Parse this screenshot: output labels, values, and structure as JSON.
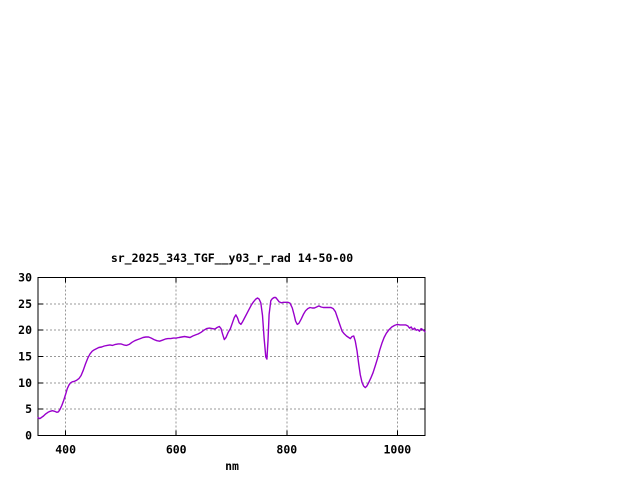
{
  "chart_data": {
    "type": "line",
    "title": "sr_2025_343_TGF__y03_r_rad 14-50-00",
    "xlabel": "nm",
    "ylabel": "",
    "xlim": [
      350,
      1050
    ],
    "ylim": [
      0,
      30
    ],
    "x_ticks": [
      400,
      600,
      800,
      1000
    ],
    "y_ticks": [
      0,
      5,
      10,
      15,
      20,
      25,
      30
    ],
    "grid": true,
    "legend": "none",
    "colors": {
      "axis": "#000000",
      "grid": "#989898",
      "background": "#ffffff"
    },
    "series": [
      {
        "name": "radiance",
        "color": "#9900cc",
        "points": [
          [
            350,
            3.4
          ],
          [
            353,
            3.2
          ],
          [
            356,
            3.4
          ],
          [
            360,
            3.7
          ],
          [
            364,
            4.1
          ],
          [
            368,
            4.4
          ],
          [
            372,
            4.6
          ],
          [
            376,
            4.7
          ],
          [
            380,
            4.6
          ],
          [
            384,
            4.4
          ],
          [
            387,
            4.5
          ],
          [
            390,
            5.0
          ],
          [
            393,
            5.7
          ],
          [
            396,
            6.5
          ],
          [
            400,
            7.8
          ],
          [
            403,
            8.9
          ],
          [
            406,
            9.6
          ],
          [
            409,
            10.0
          ],
          [
            412,
            10.2
          ],
          [
            416,
            10.3
          ],
          [
            420,
            10.5
          ],
          [
            424,
            10.8
          ],
          [
            428,
            11.4
          ],
          [
            432,
            12.4
          ],
          [
            436,
            13.6
          ],
          [
            440,
            14.7
          ],
          [
            444,
            15.5
          ],
          [
            448,
            16.0
          ],
          [
            452,
            16.3
          ],
          [
            456,
            16.5
          ],
          [
            460,
            16.7
          ],
          [
            465,
            16.8
          ],
          [
            470,
            17.0
          ],
          [
            475,
            17.1
          ],
          [
            480,
            17.2
          ],
          [
            485,
            17.1
          ],
          [
            490,
            17.3
          ],
          [
            495,
            17.4
          ],
          [
            500,
            17.4
          ],
          [
            505,
            17.2
          ],
          [
            510,
            17.1
          ],
          [
            515,
            17.3
          ],
          [
            520,
            17.7
          ],
          [
            525,
            18.0
          ],
          [
            530,
            18.2
          ],
          [
            535,
            18.4
          ],
          [
            540,
            18.6
          ],
          [
            545,
            18.7
          ],
          [
            550,
            18.7
          ],
          [
            555,
            18.5
          ],
          [
            560,
            18.2
          ],
          [
            565,
            18.0
          ],
          [
            570,
            17.9
          ],
          [
            575,
            18.1
          ],
          [
            580,
            18.3
          ],
          [
            585,
            18.4
          ],
          [
            590,
            18.4
          ],
          [
            595,
            18.5
          ],
          [
            600,
            18.5
          ],
          [
            605,
            18.6
          ],
          [
            610,
            18.7
          ],
          [
            615,
            18.8
          ],
          [
            620,
            18.7
          ],
          [
            625,
            18.6
          ],
          [
            630,
            18.9
          ],
          [
            635,
            19.1
          ],
          [
            640,
            19.3
          ],
          [
            645,
            19.6
          ],
          [
            650,
            20.0
          ],
          [
            655,
            20.3
          ],
          [
            660,
            20.4
          ],
          [
            665,
            20.3
          ],
          [
            670,
            20.2
          ],
          [
            674,
            20.5
          ],
          [
            678,
            20.7
          ],
          [
            681,
            20.3
          ],
          [
            684,
            19.2
          ],
          [
            687,
            18.2
          ],
          [
            690,
            18.6
          ],
          [
            694,
            19.6
          ],
          [
            698,
            20.3
          ],
          [
            702,
            21.5
          ],
          [
            705,
            22.4
          ],
          [
            708,
            22.9
          ],
          [
            711,
            22.3
          ],
          [
            714,
            21.4
          ],
          [
            717,
            21.1
          ],
          [
            720,
            21.6
          ],
          [
            724,
            22.4
          ],
          [
            728,
            23.2
          ],
          [
            732,
            24.0
          ],
          [
            736,
            24.8
          ],
          [
            740,
            25.4
          ],
          [
            744,
            25.9
          ],
          [
            747,
            26.1
          ],
          [
            750,
            25.9
          ],
          [
            753,
            25.2
          ],
          [
            756,
            22.8
          ],
          [
            759,
            18.5
          ],
          [
            762,
            14.9
          ],
          [
            764,
            14.5
          ],
          [
            766,
            18.0
          ],
          [
            768,
            23.0
          ],
          [
            771,
            25.6
          ],
          [
            774,
            26.0
          ],
          [
            777,
            26.2
          ],
          [
            780,
            26.2
          ],
          [
            783,
            25.8
          ],
          [
            786,
            25.4
          ],
          [
            790,
            25.2
          ],
          [
            794,
            25.3
          ],
          [
            798,
            25.3
          ],
          [
            802,
            25.3
          ],
          [
            806,
            25.1
          ],
          [
            810,
            24.2
          ],
          [
            813,
            23.0
          ],
          [
            816,
            21.7
          ],
          [
            819,
            21.1
          ],
          [
            822,
            21.3
          ],
          [
            826,
            22.1
          ],
          [
            830,
            23.0
          ],
          [
            834,
            23.7
          ],
          [
            838,
            24.1
          ],
          [
            842,
            24.3
          ],
          [
            846,
            24.2
          ],
          [
            850,
            24.2
          ],
          [
            854,
            24.4
          ],
          [
            858,
            24.6
          ],
          [
            862,
            24.4
          ],
          [
            866,
            24.3
          ],
          [
            870,
            24.3
          ],
          [
            875,
            24.3
          ],
          [
            880,
            24.3
          ],
          [
            884,
            24.1
          ],
          [
            888,
            23.5
          ],
          [
            892,
            22.3
          ],
          [
            896,
            21.0
          ],
          [
            900,
            19.8
          ],
          [
            904,
            19.3
          ],
          [
            908,
            18.9
          ],
          [
            912,
            18.6
          ],
          [
            915,
            18.4
          ],
          [
            918,
            18.8
          ],
          [
            921,
            18.9
          ],
          [
            924,
            17.9
          ],
          [
            927,
            16.1
          ],
          [
            930,
            13.6
          ],
          [
            933,
            11.5
          ],
          [
            936,
            10.1
          ],
          [
            939,
            9.4
          ],
          [
            942,
            9.1
          ],
          [
            945,
            9.4
          ],
          [
            948,
            10.0
          ],
          [
            952,
            10.9
          ],
          [
            956,
            11.9
          ],
          [
            960,
            13.2
          ],
          [
            964,
            14.6
          ],
          [
            968,
            16.2
          ],
          [
            972,
            17.5
          ],
          [
            976,
            18.6
          ],
          [
            980,
            19.4
          ],
          [
            985,
            20.1
          ],
          [
            990,
            20.6
          ],
          [
            995,
            20.9
          ],
          [
            1000,
            21.1
          ],
          [
            1005,
            21.0
          ],
          [
            1010,
            21.0
          ],
          [
            1015,
            21.0
          ],
          [
            1019,
            20.8
          ],
          [
            1022,
            20.4
          ],
          [
            1025,
            20.6
          ],
          [
            1028,
            20.1
          ],
          [
            1031,
            20.4
          ],
          [
            1034,
            20.0
          ],
          [
            1037,
            20.1
          ],
          [
            1040,
            19.8
          ],
          [
            1043,
            20.3
          ],
          [
            1046,
            20.1
          ],
          [
            1050,
            19.7
          ]
        ]
      }
    ]
  }
}
